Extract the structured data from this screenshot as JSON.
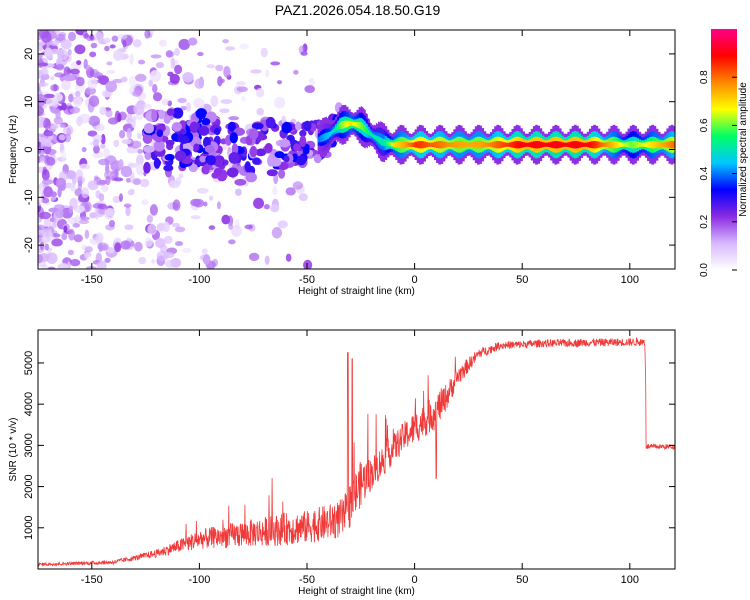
{
  "title": "PAZ1.2026.054.18.50.G19",
  "chart_data": [
    {
      "type": "heatmap",
      "title": "PAZ1.2026.054.18.50.G19",
      "xlabel": "Height of straight line (km)",
      "ylabel": "Frequency (Hz)",
      "xlim": [
        -175,
        121
      ],
      "ylim": [
        -25,
        25
      ],
      "xticks": [
        -150,
        -100,
        -50,
        0,
        50,
        100
      ],
      "yticks": [
        20,
        10,
        0,
        -10,
        -20
      ],
      "colorbar": {
        "label": "Normalized spectral amplitude",
        "range": [
          0,
          1
        ],
        "ticks": [
          "0.0",
          "0.2",
          "0.4",
          "0.6",
          "0.8"
        ],
        "colors": [
          "#ffffff",
          "#d8b8ff",
          "#8a2be2",
          "#0000ff",
          "#00c8ff",
          "#00ff66",
          "#ffff00",
          "#ff8800",
          "#ff0000",
          "#ff0088"
        ]
      },
      "ridge": {
        "x": [
          -120,
          -110,
          -100,
          -90,
          -80,
          -70,
          -60,
          -50,
          -40,
          -35,
          -30,
          -25,
          -20,
          -15,
          -10,
          -5,
          0,
          10,
          20,
          30,
          50,
          80,
          100,
          120
        ],
        "freq": [
          2,
          2,
          2,
          0,
          -1,
          0,
          1,
          1,
          3,
          5,
          5.5,
          5,
          3,
          1.5,
          1,
          1,
          1,
          1,
          1,
          1,
          1,
          1,
          1,
          1
        ],
        "amplitude": [
          0.25,
          0.3,
          0.3,
          0.3,
          0.3,
          0.3,
          0.3,
          0.35,
          0.45,
          0.6,
          0.7,
          0.6,
          0.5,
          0.5,
          0.7,
          0.75,
          0.85,
          0.8,
          0.75,
          0.75,
          0.9,
          0.9,
          0.6,
          0.8
        ]
      }
    },
    {
      "type": "line",
      "xlabel": "Height of straight line (km)",
      "ylabel": "SNR (10 * v/v)",
      "xlim": [
        -175,
        121
      ],
      "ylim": [
        0,
        5800
      ],
      "xticks": [
        -150,
        -100,
        -50,
        0,
        50,
        100
      ],
      "yticks": [
        1000,
        2000,
        3000,
        4000,
        5000
      ],
      "series": [
        {
          "name": "SNR",
          "color": "#f03a3a",
          "x": [
            -175,
            -160,
            -140,
            -130,
            -120,
            -110,
            -100,
            -90,
            -80,
            -70,
            -60,
            -50,
            -40,
            -33,
            -30,
            -25,
            -20,
            -10,
            -5,
            0,
            5,
            10,
            15,
            20,
            30,
            40,
            50,
            60,
            70,
            80,
            90,
            100,
            107,
            108,
            121
          ],
          "values": [
            100,
            120,
            150,
            250,
            350,
            500,
            650,
            700,
            750,
            800,
            850,
            900,
            1000,
            1100,
            1400,
            1900,
            2200,
            2800,
            3100,
            3300,
            3500,
            3700,
            4100,
            4600,
            5200,
            5400,
            5420,
            5450,
            5450,
            5470,
            5470,
            5480,
            5480,
            2950,
            2950
          ],
          "noise": [
            50,
            50,
            60,
            80,
            120,
            200,
            300,
            350,
            400,
            450,
            500,
            500,
            550,
            600,
            700,
            700,
            500,
            450,
            450,
            500,
            500,
            550,
            400,
            300,
            150,
            120,
            120,
            120,
            120,
            120,
            120,
            120,
            120,
            80,
            80
          ],
          "spikes": [
            {
              "x": -31,
              "value": 5250
            },
            {
              "x": -29,
              "value": 5100
            },
            {
              "x": 10,
              "value": 2200
            }
          ]
        }
      ]
    }
  ]
}
